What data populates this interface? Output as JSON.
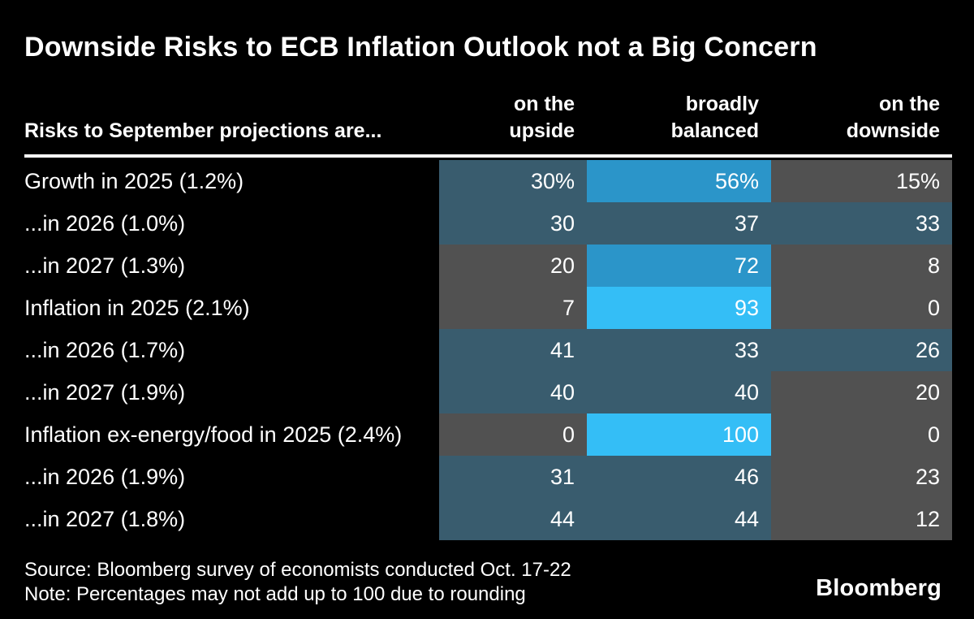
{
  "title": "Downside Risks to ECB Inflation Outlook not a Big Concern",
  "palette": {
    "gray": "#515151",
    "slate": "#395C6E",
    "mid": "#2B95C9",
    "bright": "#34BEF6",
    "background": "#000000",
    "text": "#ffffff"
  },
  "table": {
    "row_header_label": "Risks to September projections are...",
    "columns": [
      {
        "line1": "on the",
        "line2": "upside"
      },
      {
        "line1": "broadly",
        "line2": "balanced"
      },
      {
        "line1": "on the",
        "line2": "downside"
      }
    ],
    "rows": [
      {
        "label": "Growth in 2025 (1.2%)",
        "cells": [
          {
            "text": "30%",
            "tone": "slate"
          },
          {
            "text": "56%",
            "tone": "mid"
          },
          {
            "text": "15%",
            "tone": "gray"
          }
        ]
      },
      {
        "label": "...in 2026 (1.0%)",
        "cells": [
          {
            "text": "30",
            "tone": "slate"
          },
          {
            "text": "37",
            "tone": "slate"
          },
          {
            "text": "33",
            "tone": "slate"
          }
        ]
      },
      {
        "label": "...in 2027 (1.3%)",
        "cells": [
          {
            "text": "20",
            "tone": "gray"
          },
          {
            "text": "72",
            "tone": "mid"
          },
          {
            "text": "8",
            "tone": "gray"
          }
        ]
      },
      {
        "label": "Inflation in 2025 (2.1%)",
        "cells": [
          {
            "text": "7",
            "tone": "gray"
          },
          {
            "text": "93",
            "tone": "bright"
          },
          {
            "text": "0",
            "tone": "gray"
          }
        ]
      },
      {
        "label": "...in 2026 (1.7%)",
        "cells": [
          {
            "text": "41",
            "tone": "slate"
          },
          {
            "text": "33",
            "tone": "slate"
          },
          {
            "text": "26",
            "tone": "slate"
          }
        ]
      },
      {
        "label": "...in 2027 (1.9%)",
        "cells": [
          {
            "text": "40",
            "tone": "slate"
          },
          {
            "text": "40",
            "tone": "slate"
          },
          {
            "text": "20",
            "tone": "gray"
          }
        ]
      },
      {
        "label": "Inflation ex-energy/food in 2025 (2.4%)",
        "cells": [
          {
            "text": "0",
            "tone": "gray"
          },
          {
            "text": "100",
            "tone": "bright"
          },
          {
            "text": "0",
            "tone": "gray"
          }
        ]
      },
      {
        "label": "...in 2026 (1.9%)",
        "cells": [
          {
            "text": "31",
            "tone": "slate"
          },
          {
            "text": "46",
            "tone": "slate"
          },
          {
            "text": "23",
            "tone": "gray"
          }
        ]
      },
      {
        "label": "...in 2027 (1.8%)",
        "cells": [
          {
            "text": "44",
            "tone": "slate"
          },
          {
            "text": "44",
            "tone": "slate"
          },
          {
            "text": "12",
            "tone": "gray"
          }
        ]
      }
    ]
  },
  "footer": {
    "source": "Source: Bloomberg survey of economists conducted Oct. 17-22",
    "note": "Note: Percentages may not add up to 100 due to rounding",
    "logo": "Bloomberg"
  },
  "chart_data": {
    "type": "heatmap",
    "title": "Downside Risks to ECB Inflation Outlook not a Big Concern",
    "row_header": "Risks to September projections are...",
    "columns": [
      "on the upside",
      "broadly balanced",
      "on the downside"
    ],
    "rows": [
      "Growth in 2025 (1.2%)",
      "...in 2026 (1.0%)",
      "...in 2027 (1.3%)",
      "Inflation in 2025 (2.1%)",
      "...in 2026 (1.7%)",
      "...in 2027 (1.9%)",
      "Inflation ex-energy/food in 2025 (2.4%)",
      "...in 2026 (1.9%)",
      "...in 2027 (1.8%)"
    ],
    "values": [
      [
        30,
        56,
        15
      ],
      [
        30,
        37,
        33
      ],
      [
        20,
        72,
        8
      ],
      [
        7,
        93,
        0
      ],
      [
        41,
        33,
        26
      ],
      [
        40,
        40,
        20
      ],
      [
        0,
        100,
        0
      ],
      [
        31,
        46,
        23
      ],
      [
        44,
        44,
        12
      ]
    ],
    "unit": "%",
    "legend_position": "none",
    "grid": false,
    "color_scale_hint": "low=dark gray, mid=slate blue, high=medium blue, very high=bright cyan"
  }
}
